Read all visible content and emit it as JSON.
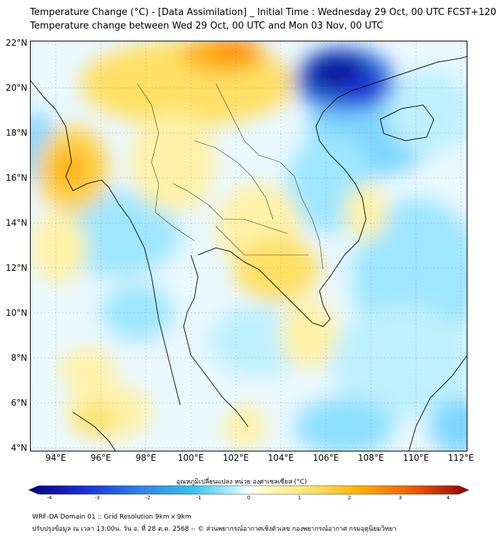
{
  "title_line1": "Temperature Change (°C) - [Data Assimilation] _ Initial Time : Wednesday 29 Oct, 00 UTC FCST+120",
  "title_line2": "Temperature change between Wed 29 Oct, 00 UTC and Mon 03 Nov, 00 UTC",
  "lat_labels": [
    "22°N",
    "20°N",
    "18°N",
    "16°N",
    "14°N",
    "12°N",
    "10°N",
    "8°N",
    "6°N",
    "4°N"
  ],
  "lon_labels": [
    "94°E",
    "96°E",
    "98°E",
    "100°E",
    "102°E",
    "104°E",
    "106°E",
    "108°E",
    "110°E",
    "112°E"
  ],
  "colorbar": {
    "title": "อุณหภูมิเปลี่ยนแปลง หน่วย องศาเซลเซียส (°C)",
    "ticks": [
      "-4",
      "-3",
      "-2",
      "-1",
      "0",
      "1",
      "2",
      "3",
      "4"
    ],
    "colors": [
      "#060080",
      "#1a2fd6",
      "#2f7fe8",
      "#39c3ec",
      "#bdf2ff",
      "#ffffff",
      "#fff7b8",
      "#ffe066",
      "#ffb000",
      "#f05a00",
      "#900000"
    ]
  },
  "footer_line1": "WRF-DA Domain 01 :: Grid Resolution 9km x 9km",
  "footer_line2": "ปรับปรุงข้อมูล ณ เวลา 13:00น. วัน อ. ที่ 28 ต.ค. 2568 -- © ส่วนพยากรณ์อากาศเชิงตัวเลข กองพยากรณ์อากาศ กรมอุตุนิยมวิทยา",
  "field_colors": {
    "cold_strong": "#0a1aa0",
    "cold": "#3aa0f0",
    "cool": "#9fe6ff",
    "neutral": "#eaf8ff",
    "warm": "#fff2a8",
    "warmer": "#ffd24a",
    "hot": "#ff8a10"
  }
}
